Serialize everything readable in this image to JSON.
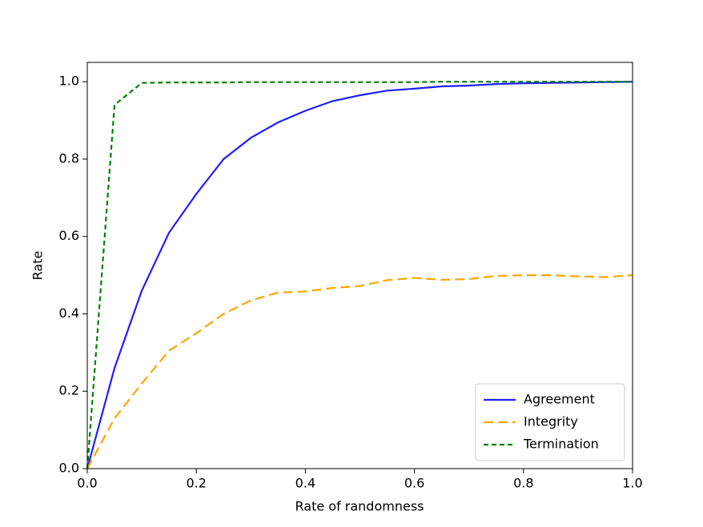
{
  "chart_data": {
    "type": "line",
    "x_label": "Rate of randomness",
    "y_label": "Rate",
    "x": [
      0,
      0.05,
      0.1,
      0.15,
      0.2,
      0.25,
      0.3,
      0.35,
      0.4,
      0.45,
      0.5,
      0.55,
      0.6,
      0.65,
      0.7,
      0.75,
      0.8,
      0.85,
      0.9,
      0.95,
      1.0
    ],
    "series": [
      {
        "name": "Agreement",
        "color": "#1f1fff",
        "style": "solid",
        "values": [
          0.0,
          0.26,
          0.46,
          0.61,
          0.71,
          0.8,
          0.855,
          0.895,
          0.925,
          0.95,
          0.965,
          0.977,
          0.982,
          0.988,
          0.99,
          0.994,
          0.996,
          0.997,
          0.998,
          0.999,
          1.0
        ]
      },
      {
        "name": "Integrity",
        "color": "#ffa500",
        "style": "dashed",
        "values": [
          0.0,
          0.13,
          0.22,
          0.305,
          0.35,
          0.4,
          0.435,
          0.455,
          0.458,
          0.467,
          0.472,
          0.487,
          0.493,
          0.488,
          0.49,
          0.498,
          0.5,
          0.5,
          0.497,
          0.495,
          0.5
        ]
      },
      {
        "name": "Termination",
        "color": "#008000",
        "style": "dotted",
        "values": [
          0.0,
          0.94,
          0.997,
          0.998,
          0.998,
          0.998,
          0.999,
          0.999,
          0.999,
          0.999,
          0.999,
          0.999,
          0.999,
          1.0,
          1.0,
          1.0,
          1.0,
          1.0,
          1.0,
          1.0,
          1.0
        ]
      }
    ],
    "xlim": [
      0,
      1.0
    ],
    "ylim": [
      0,
      1.05
    ],
    "xticks": [
      {
        "value": 0,
        "label": "0.0"
      },
      0.2,
      0.4,
      0.6,
      0.8,
      {
        "value": 1.0,
        "label": "1.0"
      }
    ],
    "yticks": [
      {
        "value": 0,
        "label": "0.0"
      },
      0.2,
      0.4,
      0.6,
      0.8,
      {
        "value": 1.0,
        "label": "1.0"
      }
    ],
    "grid": false,
    "legend": "lower right"
  }
}
